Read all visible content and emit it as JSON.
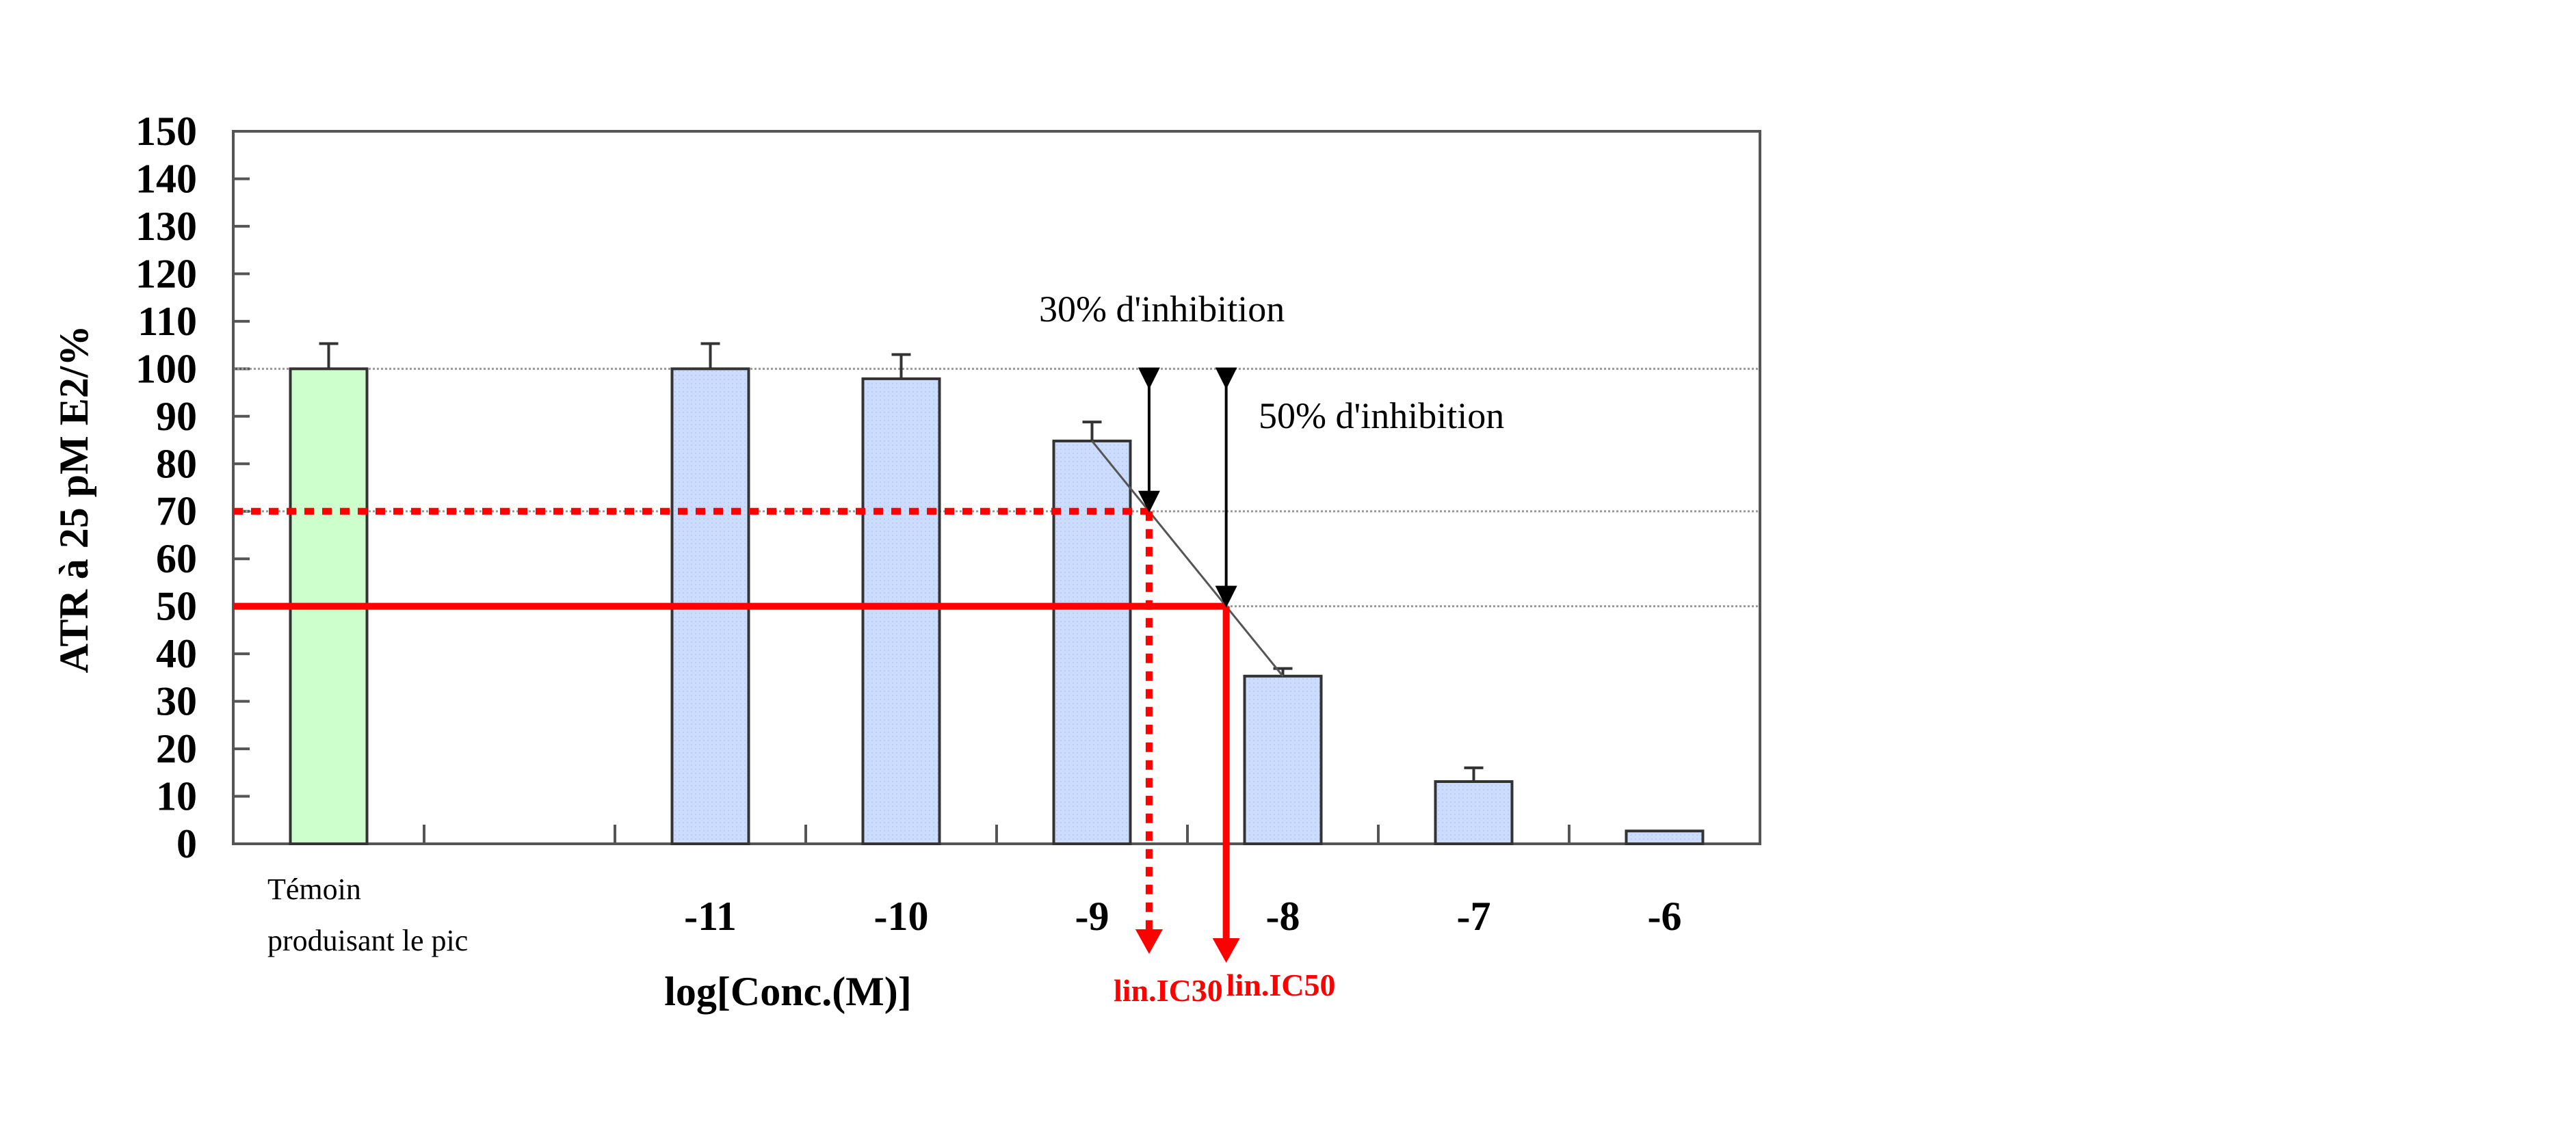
{
  "chart_data": {
    "type": "bar",
    "title": "",
    "ylabel": "ATR à 25 pM E2/%",
    "xlabel": "log[Conc.(M)]",
    "ylim": [
      0,
      150
    ],
    "yticks": [
      "150",
      "140",
      "130",
      "120",
      "110",
      "100",
      "90",
      "80",
      "70",
      "60",
      "50",
      "40",
      "30",
      "20",
      "10",
      "0"
    ],
    "grid_lines": [
      100,
      70,
      50
    ],
    "categories": [
      {
        "label": "Témoin",
        "label2": "produisant le pic",
        "x": null,
        "value": 100,
        "error": 5.3,
        "color": "#ccffcc"
      },
      {
        "label": "",
        "x": null,
        "value": null,
        "error": null,
        "color": null
      },
      {
        "label": "-11",
        "x": -11,
        "value": 100,
        "error": 5.3,
        "color": "#ccdcff"
      },
      {
        "label": "-10",
        "x": -10,
        "value": 97.9,
        "error": 5.1,
        "color": "#ccdcff"
      },
      {
        "label": "-9",
        "x": -9,
        "value": 84.8,
        "error": 4.0,
        "color": "#ccdcff"
      },
      {
        "label": "-8",
        "x": -8,
        "value": 35.3,
        "error": 1.6,
        "color": "#ccdcff"
      },
      {
        "label": "-7",
        "x": -7,
        "value": 13.1,
        "error": 2.9,
        "color": "#ccdcff"
      },
      {
        "label": "-6",
        "x": -6,
        "value": 2.7,
        "error": 0,
        "color": "#ccdcff"
      }
    ],
    "interpolation": {
      "from_x": -9,
      "to_x": -8
    },
    "annotations": {
      "ic30": {
        "level": 70,
        "label": "lin.IC30",
        "text": "30% d'inhibition"
      },
      "ic50": {
        "level": 50,
        "label": "lin.IC50",
        "text": "50% d'inhibition"
      }
    },
    "colors": {
      "threshold": "#ff0000",
      "axis": "#555555"
    }
  }
}
